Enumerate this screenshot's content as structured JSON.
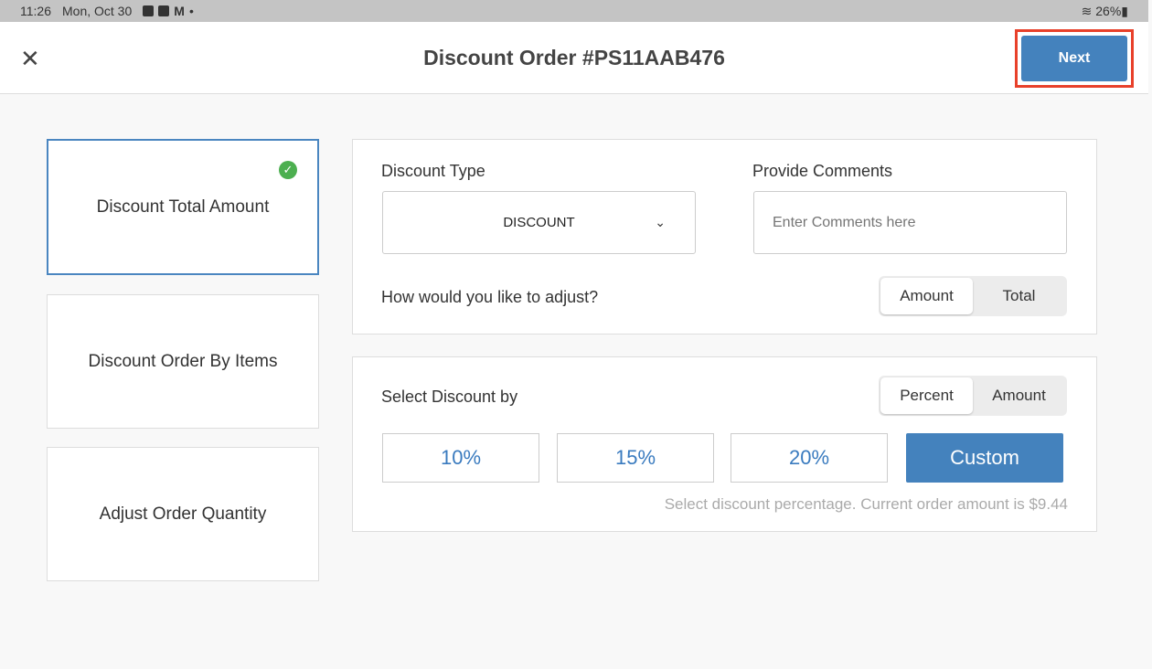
{
  "status": {
    "time": "11:26",
    "date": "Mon, Oct 30",
    "battery": "26%"
  },
  "header": {
    "title": "Discount Order #PS11AAB476",
    "next_label": "Next"
  },
  "sidebar": {
    "items": [
      {
        "label": "Discount Total Amount",
        "selected": true
      },
      {
        "label": "Discount Order By Items"
      },
      {
        "label": "Adjust Order Quantity"
      }
    ]
  },
  "form": {
    "discount_type_label": "Discount Type",
    "discount_type_value": "DISCOUNT",
    "comments_label": "Provide Comments",
    "comments_placeholder": "Enter Comments here",
    "adjust_label": "How would you like to adjust?",
    "adjust_options": [
      "Amount",
      "Total"
    ],
    "adjust_selected": "Amount"
  },
  "discount": {
    "label": "Select Discount by",
    "options": [
      "Percent",
      "Amount"
    ],
    "selected": "Percent",
    "presets": [
      "10%",
      "15%",
      "20%"
    ],
    "custom_label": "Custom",
    "hint": "Select discount percentage. Current order amount is $9.44"
  },
  "colors": {
    "accent": "#4482bd",
    "check": "#4caf50",
    "highlight": "#e8402a"
  }
}
